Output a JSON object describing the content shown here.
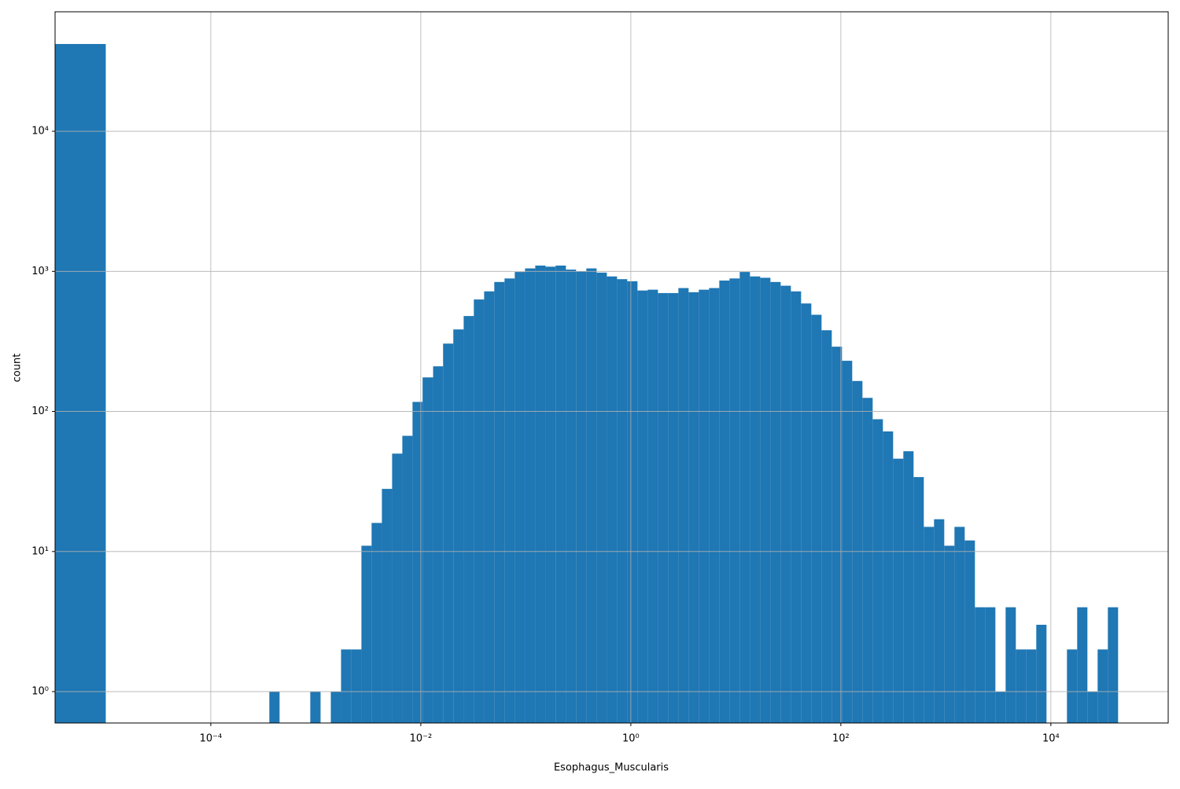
{
  "chart_data": {
    "type": "histogram",
    "x_label": "Esophagus_Muscularis",
    "y_label": "count",
    "color": "#1f77b4",
    "log_x": true,
    "log_y": true,
    "grid": true,
    "xlim": [
      3.29e-06,
      131000.0
    ],
    "ylim": [
      0.597,
      71300
    ],
    "xticks": [
      {
        "value": 0.0001,
        "label": "10⁻⁴"
      },
      {
        "value": 0.01,
        "label": "10⁻²"
      },
      {
        "value": 1,
        "label": "10⁰"
      },
      {
        "value": 100,
        "label": "10²"
      },
      {
        "value": 10000,
        "label": "10⁴"
      }
    ],
    "yticks": [
      {
        "value": 1,
        "label": "10⁰"
      },
      {
        "value": 10,
        "label": "10¹"
      },
      {
        "value": 100,
        "label": "10²"
      },
      {
        "value": 1000,
        "label": "10³"
      },
      {
        "value": 10000,
        "label": "10⁴"
      }
    ],
    "bins": [
      3.29e-06,
      1e-05,
      1.25e-05,
      1.57e-05,
      1.96e-05,
      2.45e-05,
      3.07e-05,
      3.84e-05,
      4.8e-05,
      6.01e-05,
      7.52e-05,
      9.41e-05,
      0.000118,
      0.000147,
      0.000184,
      0.000231,
      0.000289,
      0.000361,
      0.000452,
      0.000566,
      0.000708,
      0.000886,
      0.00111,
      0.00139,
      0.00174,
      0.00217,
      0.00272,
      0.0034,
      0.00426,
      0.00533,
      0.00667,
      0.00834,
      0.0104,
      0.0131,
      0.0163,
      0.0204,
      0.0256,
      0.032,
      0.0401,
      0.0501,
      0.0627,
      0.0785,
      0.0983,
      0.123,
      0.154,
      0.192,
      0.241,
      0.301,
      0.377,
      0.472,
      0.591,
      0.739,
      0.925,
      1.157,
      1.448,
      1.812,
      2.268,
      2.838,
      3.55,
      4.443,
      5.561,
      6.957,
      8.706,
      10.89,
      13.63,
      17.06,
      21.35,
      26.72,
      33.43,
      41.82,
      52.34,
      65.5,
      81.96,
      102.5,
      128.3,
      160.6,
      200.9,
      251.4,
      314.6,
      393.7,
      492.6,
      616.6,
      771.5,
      965.4,
      1208,
      1512,
      1891,
      2367,
      2962,
      3707,
      4638,
      5804,
      7261,
      9087,
      11370,
      14230,
      17800,
      22280,
      27880,
      34890,
      43650
    ],
    "counts": [
      42000,
      0,
      0,
      0,
      0,
      0,
      0,
      0,
      0,
      0,
      0,
      0,
      0,
      0,
      0,
      0,
      0,
      1,
      0,
      0,
      0,
      1,
      0,
      1,
      2,
      2,
      11,
      16,
      28,
      50,
      67,
      117,
      175,
      210,
      305,
      385,
      480,
      630,
      720,
      840,
      890,
      990,
      1050,
      1100,
      1080,
      1100,
      1030,
      1000,
      1050,
      980,
      920,
      880,
      850,
      730,
      740,
      700,
      700,
      760,
      710,
      740,
      760,
      860,
      890,
      990,
      920,
      900,
      840,
      790,
      720,
      590,
      490,
      380,
      290,
      230,
      165,
      125,
      88,
      72,
      46,
      52,
      34,
      15,
      17,
      11,
      15,
      12,
      4,
      4,
      1,
      4,
      2,
      2,
      3,
      0,
      0,
      2,
      4,
      1,
      2,
      4
    ]
  }
}
